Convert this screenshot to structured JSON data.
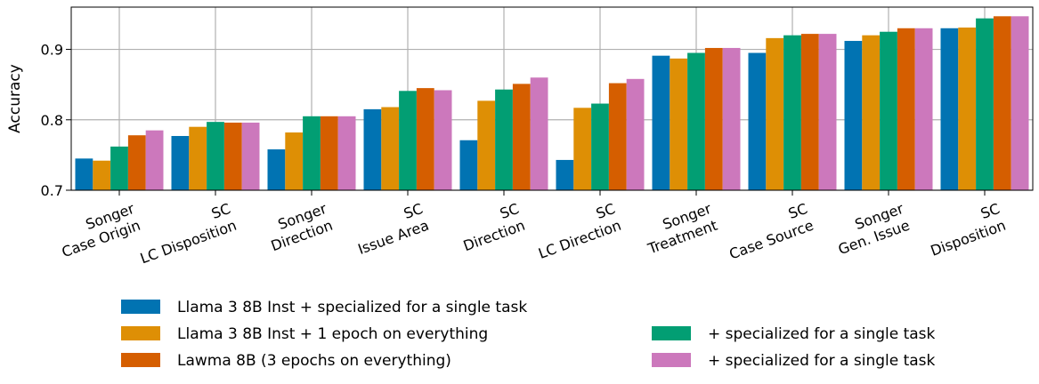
{
  "chart_data": {
    "type": "bar",
    "ylabel": "Accuracy",
    "ylim": [
      0.7,
      0.96
    ],
    "yticks": [
      "0.7",
      "0.8",
      "0.9"
    ],
    "yticks_values": [
      0.7,
      0.8,
      0.9
    ],
    "grid": true,
    "legend_position": "bottom",
    "categories": [
      [
        "Songer",
        "Case Origin"
      ],
      [
        "SC",
        "LC Disposition"
      ],
      [
        "Songer",
        "Direction"
      ],
      [
        "SC",
        "Issue Area"
      ],
      [
        "SC",
        "Direction"
      ],
      [
        "SC",
        "LC Direction"
      ],
      [
        "Songer",
        "Treatment"
      ],
      [
        "SC",
        "Case Source"
      ],
      [
        "Songer",
        "Gen. Issue"
      ],
      [
        "SC",
        "Disposition"
      ]
    ],
    "series": [
      {
        "name": "Llama 3 8B Inst + specialized for a single task",
        "color": "#0173b2",
        "values": [
          0.745,
          0.777,
          0.758,
          0.815,
          0.771,
          0.743,
          0.891,
          0.895,
          0.912,
          0.93
        ]
      },
      {
        "name": "Llama 3 8B Inst + 1 epoch on everything",
        "color": "#de8f05",
        "values": [
          0.742,
          0.79,
          0.782,
          0.818,
          0.827,
          0.817,
          0.887,
          0.916,
          0.92,
          0.931
        ]
      },
      {
        "name": "+ specialized for a single task",
        "color": "#029e73",
        "values": [
          0.762,
          0.797,
          0.805,
          0.841,
          0.843,
          0.823,
          0.895,
          0.92,
          0.925,
          0.944
        ]
      },
      {
        "name": "Lawma 8B (3 epochs on everything)",
        "color": "#d55e00",
        "values": [
          0.778,
          0.796,
          0.805,
          0.845,
          0.851,
          0.852,
          0.902,
          0.922,
          0.93,
          0.947
        ]
      },
      {
        "name": "+ specialized for a single task",
        "color": "#cc78bc",
        "values": [
          0.785,
          0.796,
          0.805,
          0.842,
          0.86,
          0.858,
          0.902,
          0.922,
          0.93,
          0.947
        ]
      }
    ],
    "legend_layout": [
      {
        "series": 0,
        "col": 0,
        "row": 0
      },
      {
        "series": 1,
        "col": 0,
        "row": 1
      },
      {
        "series": 3,
        "col": 0,
        "row": 2
      },
      {
        "series": 2,
        "col": 1,
        "row": 1
      },
      {
        "series": 4,
        "col": 1,
        "row": 2
      }
    ]
  }
}
